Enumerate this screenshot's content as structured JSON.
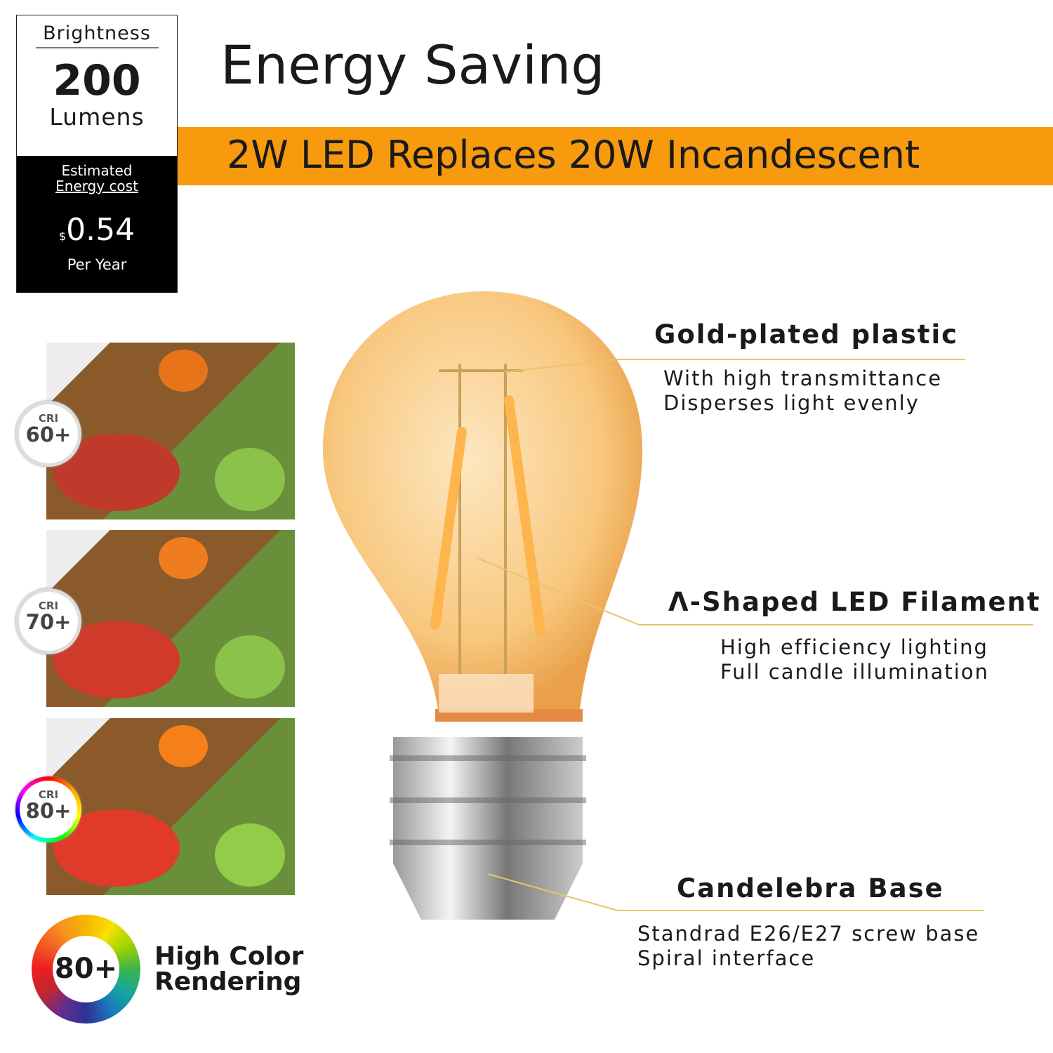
{
  "brightness_box": {
    "label": "Brightness",
    "value": "200",
    "unit": "Lumens",
    "cost_label_1": "Estimated",
    "cost_label_2": "Energy cost",
    "currency": "$",
    "cost": "0.54",
    "period": "Per Year"
  },
  "title": "Energy Saving",
  "banner": {
    "text": "2W LED Replaces 20W Incandescent",
    "color": "#f89a0e"
  },
  "cri_badges": [
    {
      "label": "CRI",
      "value": "60+"
    },
    {
      "label": "CRI",
      "value": "70+"
    },
    {
      "label": "CRI",
      "value": "80+"
    }
  ],
  "color_rendering": {
    "value": "80+",
    "line1": "High Color",
    "line2": "Rendering"
  },
  "features": [
    {
      "heading": "Gold-plated plastic",
      "lines": [
        "With high transmittance",
        "Disperses light evenly"
      ]
    },
    {
      "heading": "Λ-Shaped LED Filament",
      "lines": [
        "High efficiency lighting",
        "Full candle illumination"
      ]
    },
    {
      "heading": "Candelebra Base",
      "lines": [
        "Standrad E26/E27 screw base",
        "Spiral interface"
      ]
    }
  ]
}
